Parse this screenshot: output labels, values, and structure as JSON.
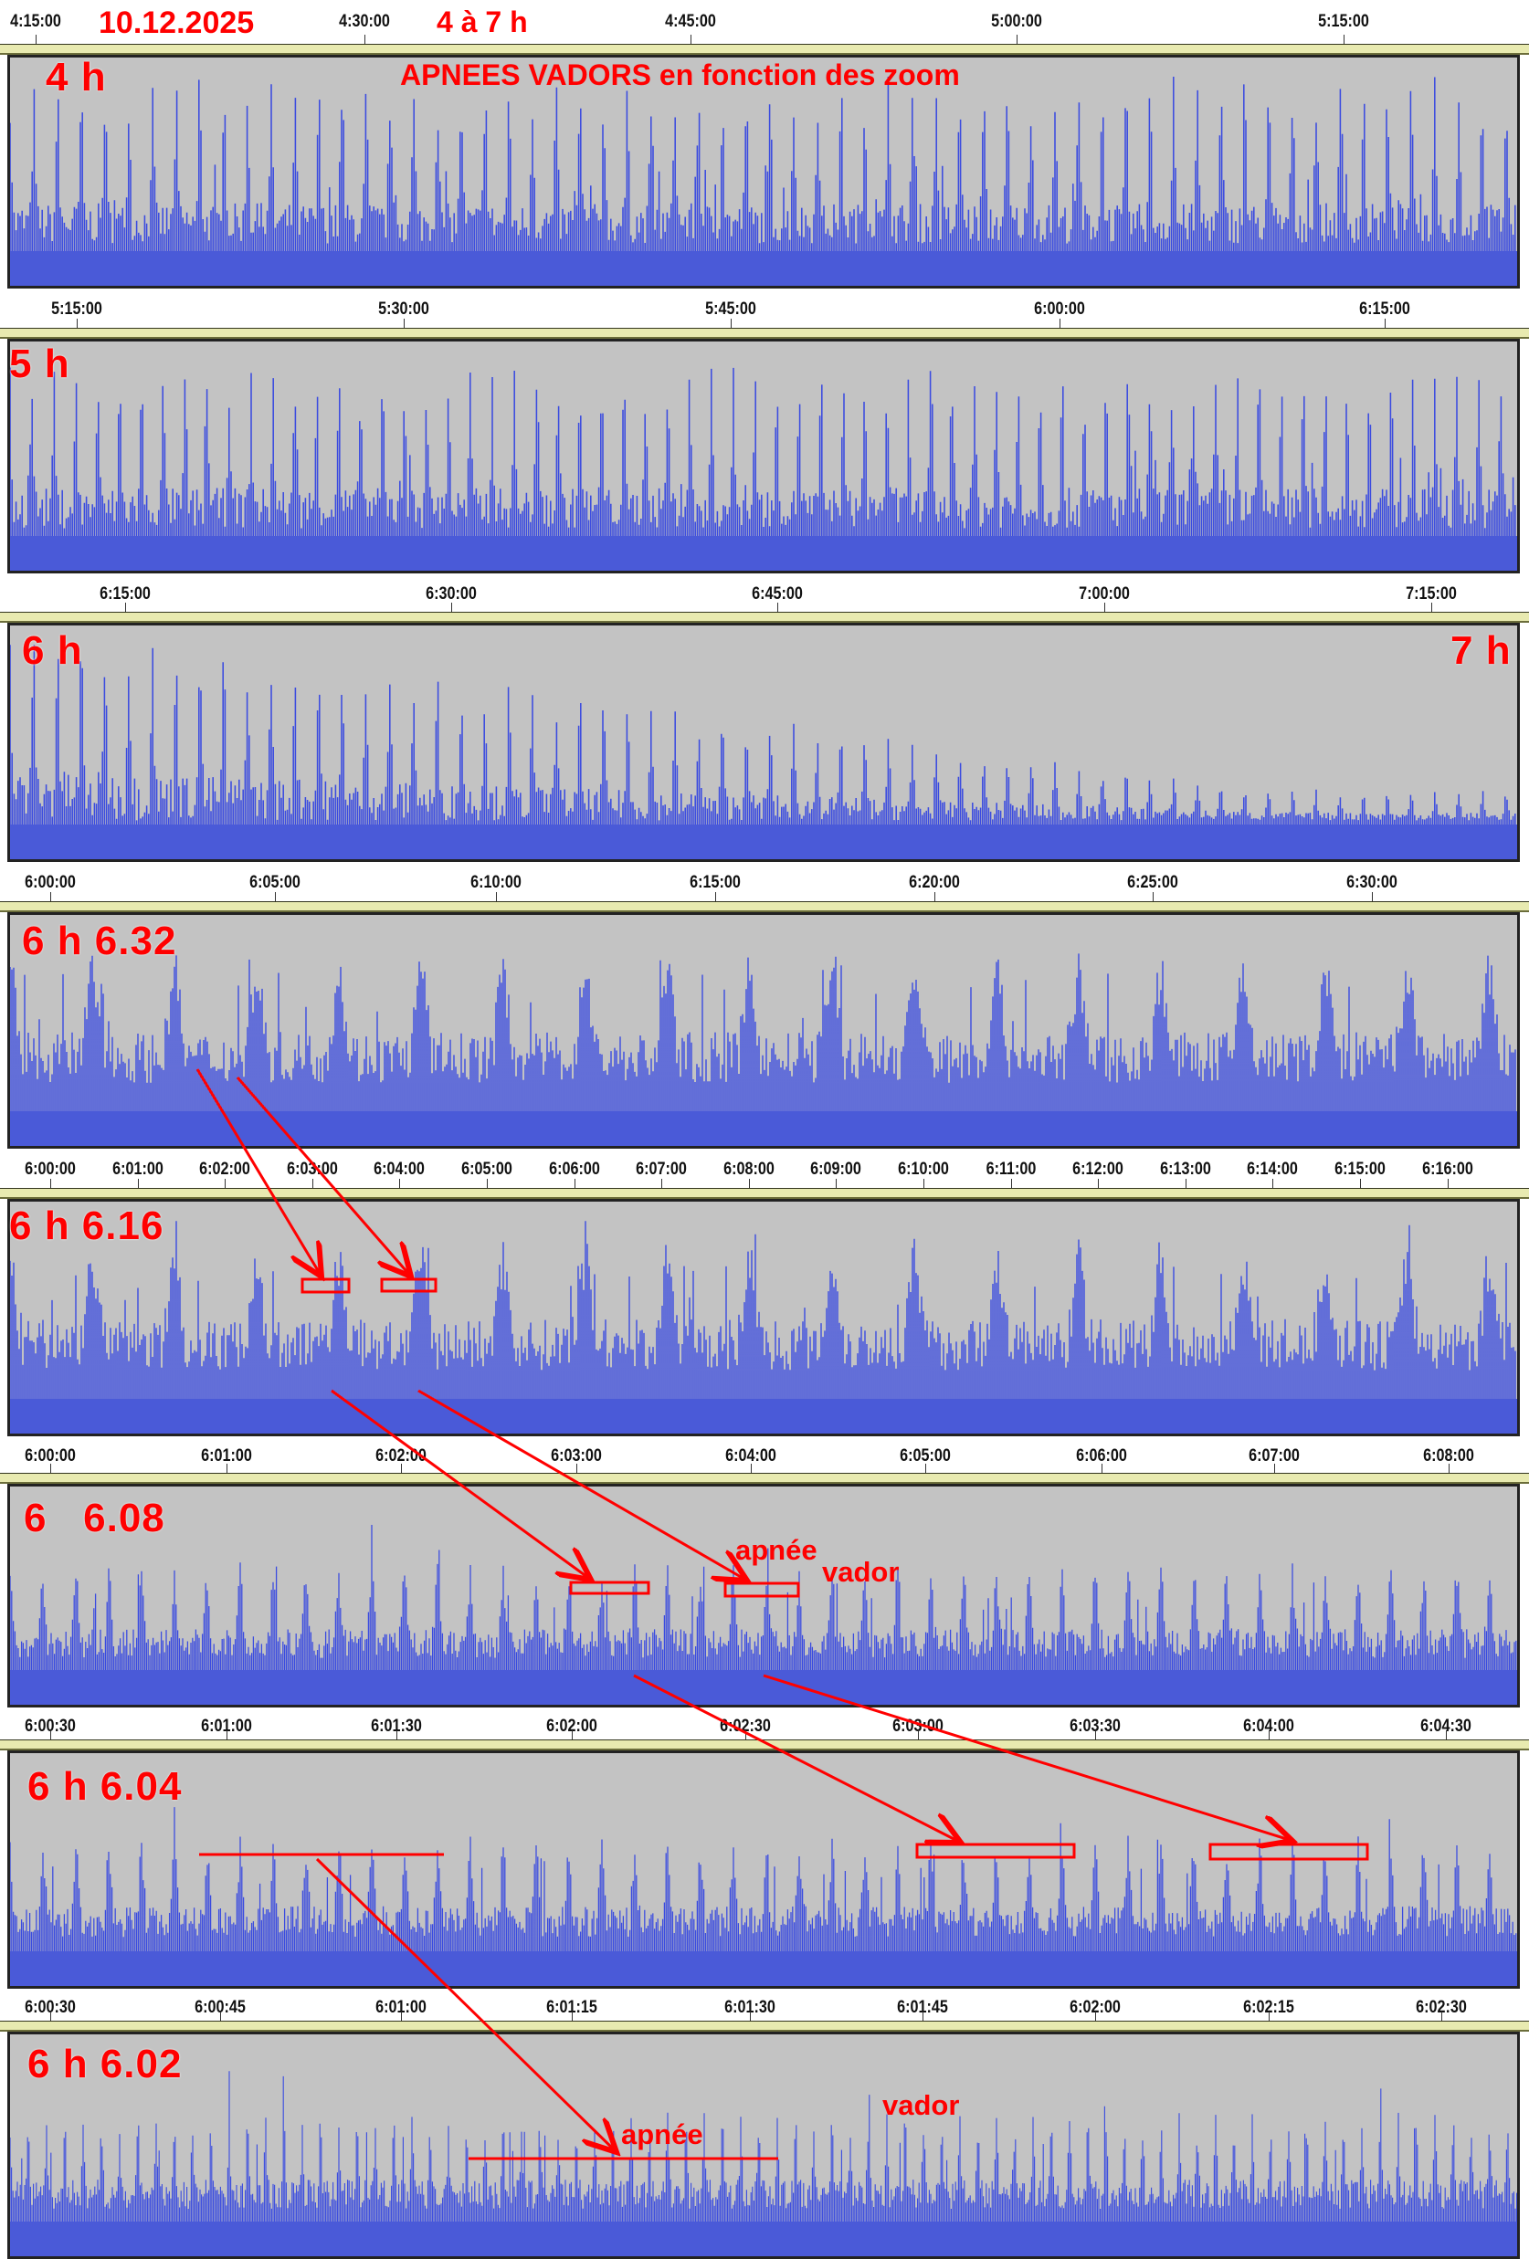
{
  "header": {
    "date": "10.12.2025",
    "range": "4 à 7 h",
    "title": "APNEES VADORS en fonction des zoom"
  },
  "panels": [
    {
      "label": "4 h",
      "label2": "",
      "ticks": [
        "4:15:00",
        "4:30:00",
        "4:45:00",
        "5:00:00",
        "5:15:00"
      ]
    },
    {
      "label": "5 h",
      "label2": "",
      "ticks": [
        "5:15:00",
        "5:30:00",
        "5:45:00",
        "6:00:00",
        "6:15:00"
      ]
    },
    {
      "label": "6 h",
      "label2": "7 h",
      "ticks": [
        "6:15:00",
        "6:30:00",
        "6:45:00",
        "7:00:00",
        "7:15:00"
      ]
    },
    {
      "label": "6 h 6.32",
      "label2": "",
      "ticks": [
        "6:00:00",
        "6:05:00",
        "6:10:00",
        "6:15:00",
        "6:20:00",
        "6:25:00",
        "6:30:00"
      ]
    },
    {
      "label": "6 h 6.16",
      "label2": "",
      "ticks": [
        "6:00:00",
        "6:01:00",
        "6:02:00",
        "6:03:00",
        "6:04:00",
        "6:05:00",
        "6:06:00",
        "6:07:00",
        "6:08:00",
        "6:09:00",
        "6:10:00",
        "6:11:00",
        "6:12:00",
        "6:13:00",
        "6:14:00",
        "6:15:00",
        "6:16:00"
      ]
    },
    {
      "label": "6   6.08",
      "label2": "",
      "ticks": [
        "6:00:00",
        "6:01:00",
        "6:02:00",
        "6:03:00",
        "6:04:00",
        "6:05:00",
        "6:06:00",
        "6:07:00",
        "6:08:00"
      ]
    },
    {
      "label": "6 h 6.04",
      "label2": "",
      "ticks": [
        "6:00:30",
        "6:01:00",
        "6:01:30",
        "6:02:00",
        "6:02:30",
        "6:03:00",
        "6:03:30",
        "6:04:00",
        "6:04:30"
      ]
    },
    {
      "label": "6 h 6.02",
      "label2": "",
      "ticks": [
        "6:00:30",
        "6:00:45",
        "6:01:00",
        "6:01:15",
        "6:01:30",
        "6:01:45",
        "6:02:00",
        "6:02:15",
        "6:02:30"
      ]
    }
  ],
  "annotations": {
    "apnee_6": "apnée",
    "vador_6": "vador",
    "apnee_8": "apnée",
    "vador_8": "vador"
  },
  "colors": {
    "signal": "#3a4be0",
    "background": "#c3c3c3",
    "annotation": "#ff0000"
  }
}
